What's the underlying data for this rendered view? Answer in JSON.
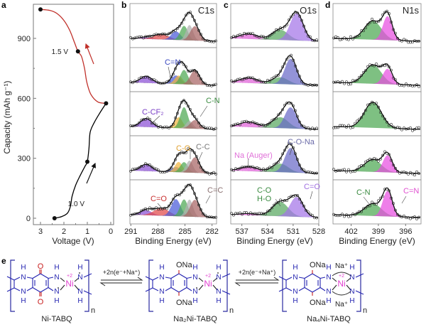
{
  "panel_letters": {
    "a": "a",
    "b": "b",
    "c": "c",
    "d": "d",
    "e": "e"
  },
  "chart_data": [
    {
      "panel": "a",
      "type": "line",
      "xlabel": "Voltage (V)",
      "ylabel": "Capacity (mAh g⁻¹)",
      "xlim": [
        3.3,
        -0.1
      ],
      "ylim": [
        -40,
        1100
      ],
      "xticks": [
        3,
        2,
        1,
        0
      ],
      "yticks": [
        0,
        300,
        600,
        900
      ],
      "series": [
        {
          "color": "#000000",
          "direction": "discharge",
          "points": [
            [
              2.4,
              0
            ],
            [
              2.1,
              8
            ],
            [
              1.85,
              25
            ],
            [
              1.72,
              60
            ],
            [
              1.65,
              110
            ],
            [
              1.5,
              165
            ],
            [
              1.3,
              215
            ],
            [
              1.1,
              260
            ],
            [
              1.0,
              283
            ],
            [
              0.93,
              350
            ],
            [
              0.88,
              430
            ],
            [
              0.7,
              480
            ],
            [
              0.45,
              530
            ],
            [
              0.2,
              575
            ]
          ]
        },
        {
          "color": "#c0302a",
          "direction": "charge",
          "points": [
            [
              0.2,
              575
            ],
            [
              0.55,
              582
            ],
            [
              0.85,
              620
            ],
            [
              1.02,
              680
            ],
            [
              1.12,
              750
            ],
            [
              1.25,
              810
            ],
            [
              1.4,
              835
            ],
            [
              1.55,
              880
            ],
            [
              1.75,
              940
            ],
            [
              2.0,
              990
            ],
            [
              2.3,
              1025
            ],
            [
              2.6,
              1040
            ],
            [
              3.0,
              1045
            ]
          ]
        }
      ],
      "markers": [
        [
          2.4,
          0
        ],
        [
          1.0,
          283
        ],
        [
          0.2,
          575
        ],
        [
          1.4,
          835
        ],
        [
          3.0,
          1045
        ]
      ],
      "annotations": {
        "v1": "1.0 V",
        "v2": "1.5 V"
      }
    },
    {
      "panel": "b",
      "type": "area",
      "title": "C1s",
      "xlabel": "Binding Energy (eV)",
      "xlim": [
        291.1,
        281.5
      ],
      "xticks": [
        291,
        288,
        285,
        282
      ],
      "components": [
        {
          "key": "ccf2",
          "label": "C-CF₂",
          "center": 289.3,
          "fwhm": 1.5,
          "color": "#8a4fd6"
        },
        {
          "key": "co2",
          "label": "C=O",
          "center": 287.6,
          "fwhm": 2.0,
          "color": "#e04848"
        },
        {
          "key": "cn2",
          "label": "C=N",
          "center": 286.0,
          "fwhm": 1.2,
          "color": "#4a5ad8"
        },
        {
          "key": "co",
          "label": "C-O",
          "center": 285.7,
          "fwhm": 1.0,
          "color": "#f0b440"
        },
        {
          "key": "cn",
          "label": "C-N",
          "center": 285.1,
          "fwhm": 1.0,
          "color": "#4ca852"
        },
        {
          "key": "cc",
          "label": "C-C",
          "center": 284.5,
          "fwhm": 0.9,
          "color": "#b0b0b0"
        },
        {
          "key": "cc2",
          "label": "C=C",
          "center": 283.9,
          "fwhm": 1.2,
          "color": "#a86464"
        }
      ],
      "spectra": [
        {
          "ccf2": 0.05,
          "co2": 0.15,
          "cn2": 0.25,
          "cn": 0.42,
          "cc": 0.45,
          "cc2": 0.42
        },
        {
          "ccf2": 0.2,
          "cn2": 0.25,
          "co": 0.25,
          "cn": 0.42,
          "cc2": 0.42
        },
        {
          "ccf2": 0.25,
          "co": 0.32,
          "cn": 0.62,
          "cc": 0.22,
          "cc2": 0.25
        },
        {
          "ccf2": 0.2,
          "cn2": 0.15,
          "co": 0.3,
          "cn": 0.3,
          "cc": 0.35,
          "cc2": 0.45
        },
        {
          "ccf2": 0.15,
          "co2": 0.22,
          "cn2": 0.5,
          "cn": 0.5,
          "cc": 0.5,
          "cc2": 0.5
        }
      ]
    },
    {
      "panel": "c",
      "type": "area",
      "title": "O1s",
      "xlabel": "Binding Energy (eV)",
      "xlim": [
        538.3,
        528.0
      ],
      "xticks": [
        537,
        534,
        531,
        528
      ],
      "components": [
        {
          "key": "auger",
          "label": "Na (Auger)",
          "center": 536.2,
          "fwhm": 2.4,
          "color": "#e060d8"
        },
        {
          "key": "coho",
          "label": "C-O H-O",
          "center": 532.5,
          "fwhm": 2.2,
          "color": "#58a860"
        },
        {
          "key": "cona",
          "label": "C-O-Na",
          "center": 531.3,
          "fwhm": 1.6,
          "color": "#6a6ac8"
        },
        {
          "key": "co2",
          "label": "C=O",
          "center": 530.6,
          "fwhm": 1.8,
          "color": "#a474e8"
        }
      ],
      "spectra": [
        {
          "auger": 0.15,
          "coho": 0.3,
          "co2": 0.8
        },
        {
          "auger": 0.15,
          "coho": 0.2,
          "cona": 0.75
        },
        {
          "auger": 0.15,
          "coho": 0.32,
          "cona": 0.62
        },
        {
          "auger": 0.13,
          "coho": 0.25,
          "cona": 0.72
        },
        {
          "auger": 0.05,
          "coho": 0.42,
          "co2": 0.58
        }
      ],
      "labels": {
        "auger": "Na (Auger)",
        "cona": "C-O-Na",
        "co_line1": "C-O",
        "co_line2": "H-O",
        "co2": "C=O"
      }
    },
    {
      "panel": "d",
      "type": "area",
      "title": "N1s",
      "xlabel": "Binding Energy (eV)",
      "xlim": [
        404.0,
        394.3
      ],
      "xticks": [
        402,
        399,
        396
      ],
      "components": [
        {
          "key": "cn",
          "label": "C-N",
          "center": 399.6,
          "fwhm": 2.2,
          "color": "#4ca852"
        },
        {
          "key": "cn2",
          "label": "C=N",
          "center": 398.0,
          "fwhm": 1.2,
          "color": "#e84ee0"
        }
      ],
      "spectra": [
        {
          "cn": 0.55,
          "cn2": 0.7
        },
        {
          "cn": 0.55,
          "cn2": 0.45
        },
        {
          "cn": 0.75
        },
        {
          "cn": 0.36,
          "cn2": 0.5
        },
        {
          "cn": 0.36,
          "cn2": 0.75
        }
      ]
    }
  ],
  "scheme": {
    "compounds": [
      {
        "name": "Ni-TABQ",
        "variant": "quinone"
      },
      {
        "name": "Na₂Ni-TABQ",
        "variant": "phenolate"
      },
      {
        "name": "Na₄Ni-TABQ",
        "variant": "phenolate-na"
      }
    ],
    "arrow_label": "+2n(e⁻+Na⁺)",
    "atoms": {
      "H": "H",
      "N": "N",
      "O": "O",
      "ONa": "ONa",
      "Ni": "Ni",
      "charge": "+2",
      "n": "n",
      "Na_plus": "Na⁺",
      "minus": "-"
    },
    "colors": {
      "bracket": "#2a2aa0",
      "nitrogen": "#2222b0",
      "oxygen": "#c82020",
      "nickel": "#e040d0"
    }
  }
}
